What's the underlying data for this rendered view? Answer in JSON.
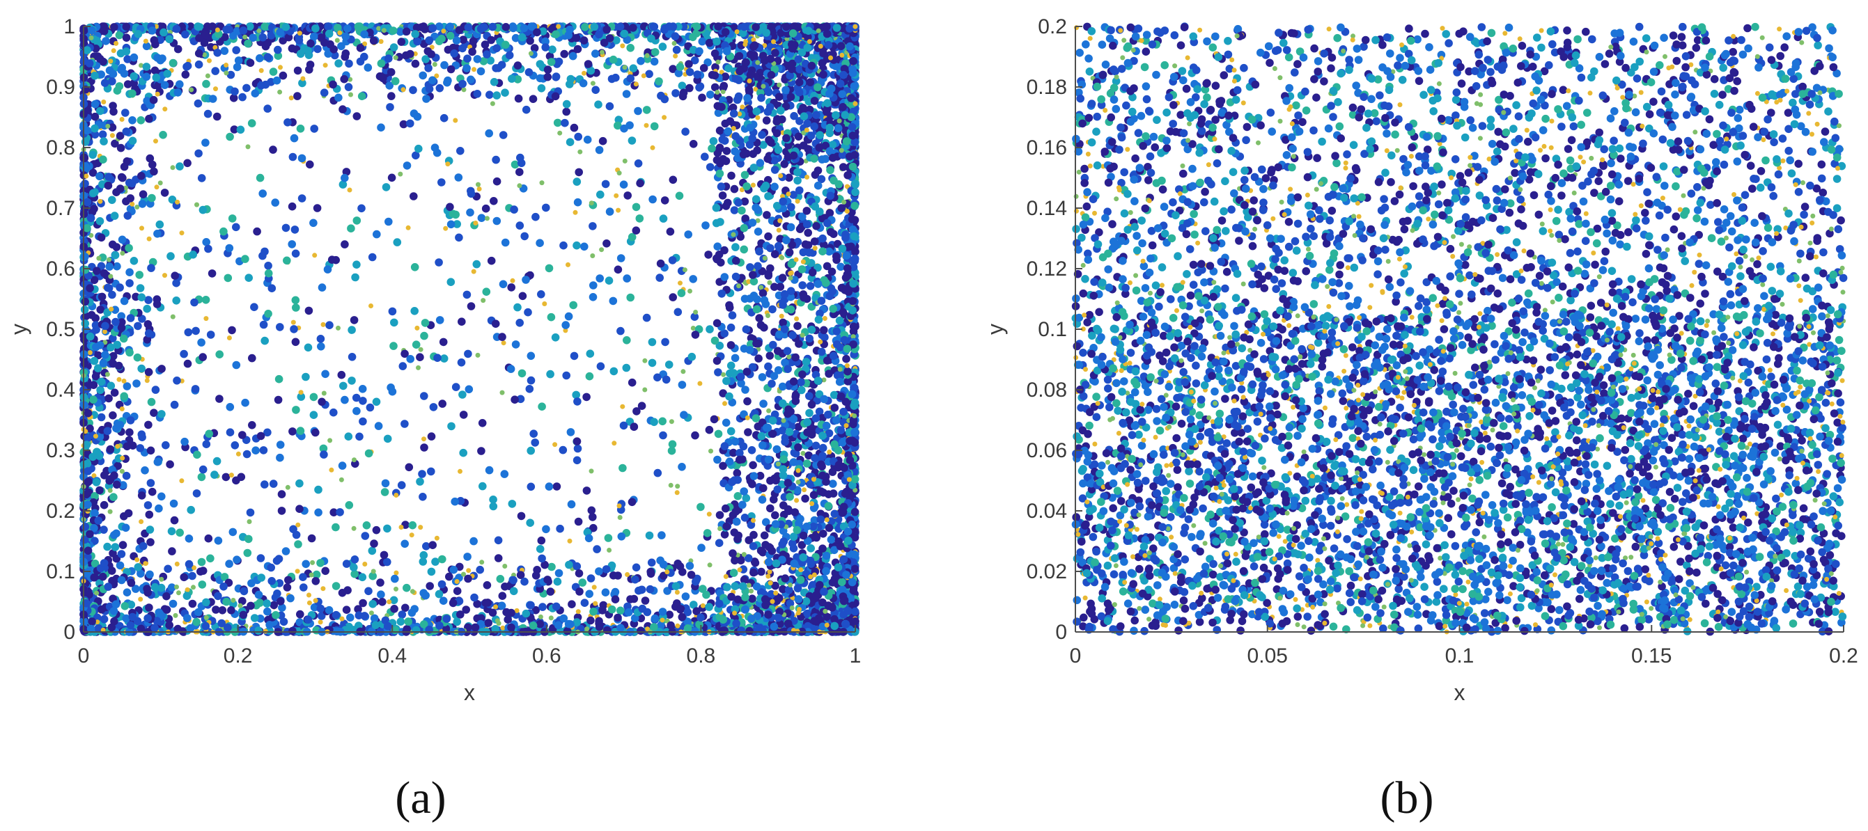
{
  "chart_data": [
    {
      "type": "scatter",
      "panel_label": "(a)",
      "xlabel": "x",
      "ylabel": "y",
      "xlim": [
        0,
        1
      ],
      "ylim": [
        0,
        1
      ],
      "xticks": [
        0,
        0.2,
        0.4,
        0.6,
        0.8,
        1
      ],
      "xtick_labels": [
        "0",
        "0.2",
        "0.4",
        "0.6",
        "0.8",
        "1"
      ],
      "yticks": [
        0,
        0.1,
        0.2,
        0.3,
        0.4,
        0.5,
        0.6,
        0.7,
        0.8,
        0.9,
        1
      ],
      "ytick_labels": [
        "0",
        "0.1",
        "0.2",
        "0.3",
        "0.4",
        "0.5",
        "0.6",
        "0.7",
        "0.8",
        "0.9",
        "1"
      ],
      "grid": false,
      "distribution": "points densely clustered along all four boundaries (x≈0, x≈1, y≈0, y≈1) with highest density near the top-right corner and a dense vertical band for x between 0.82 and 1; sparse interior",
      "point_count_approx": 6000
    },
    {
      "type": "scatter",
      "panel_label": "(b)",
      "xlabel": "x",
      "ylabel": "y",
      "xlim": [
        0,
        0.2
      ],
      "ylim": [
        0,
        0.2
      ],
      "xticks": [
        0,
        0.05,
        0.1,
        0.15,
        0.2
      ],
      "xtick_labels": [
        "0",
        "0.05",
        "0.1",
        "0.15",
        "0.2"
      ],
      "yticks": [
        0,
        0.02,
        0.04,
        0.06,
        0.08,
        0.1,
        0.12,
        0.14,
        0.16,
        0.18,
        0.2
      ],
      "ytick_labels": [
        "0",
        "0.02",
        "0.04",
        "0.06",
        "0.08",
        "0.1",
        "0.12",
        "0.14",
        "0.16",
        "0.18",
        "0.2"
      ],
      "grid": false,
      "distribution": "points roughly uniformly distributed over the whole domain, slightly denser in the lower half",
      "point_count_approx": 7000
    }
  ],
  "colors": {
    "palette": [
      "#2a1f8f",
      "#1f4fc8",
      "#1c73d8",
      "#1aa0c0",
      "#2bb39a",
      "#7fbf6a",
      "#e8b832"
    ],
    "axis": "#4d4d4d",
    "text": "#3a3a3a"
  }
}
